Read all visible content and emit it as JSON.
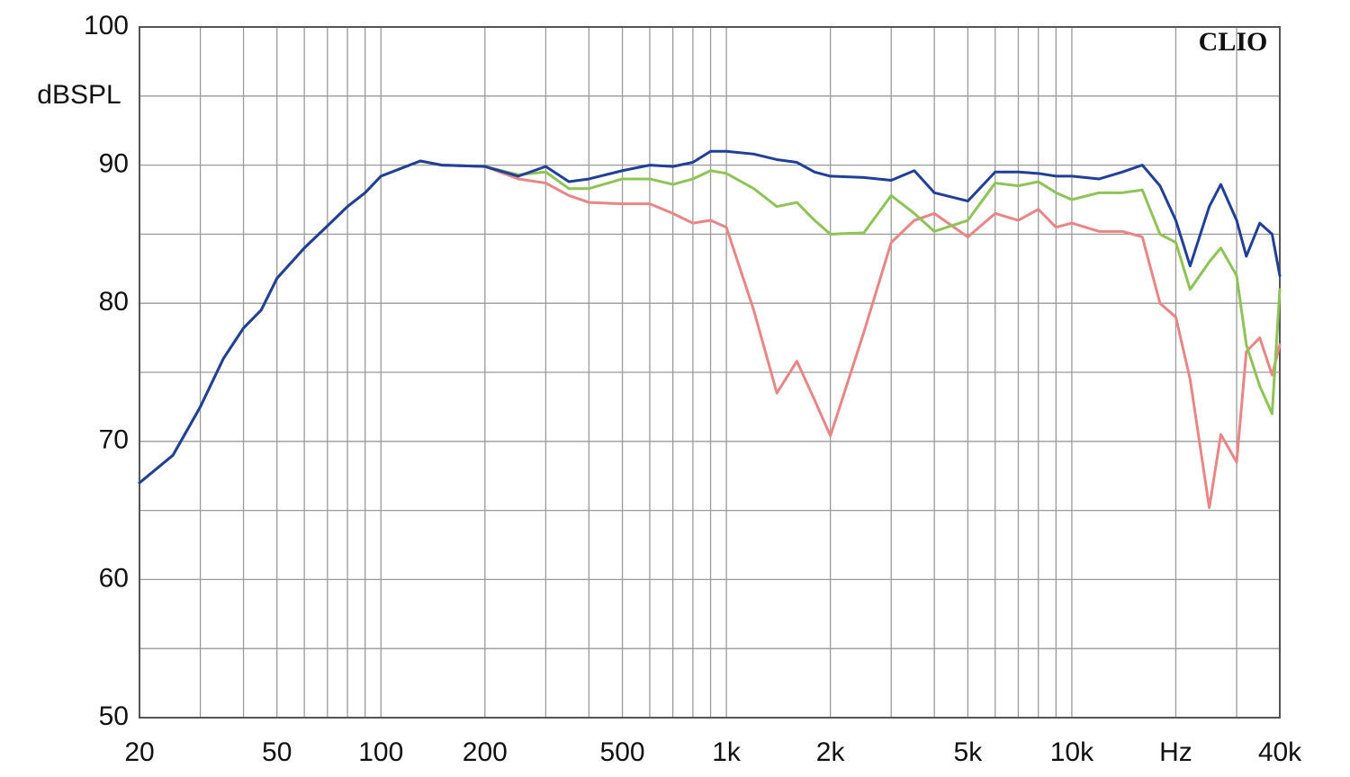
{
  "chart_data": {
    "type": "line",
    "ylabel": "dBSPL",
    "annotation": "CLIO",
    "xscale": "log",
    "grid": true,
    "xlim": [
      20,
      40000
    ],
    "ylim": [
      50,
      100
    ],
    "xticks": [
      20,
      50,
      100,
      200,
      500,
      {
        "value": 1000,
        "label": "1k"
      },
      {
        "value": 2000,
        "label": "2k"
      },
      {
        "value": 5000,
        "label": "5k"
      },
      {
        "value": 10000,
        "label": "10k"
      },
      {
        "value": 20000,
        "label": "Hz"
      },
      {
        "value": 40000,
        "label": "40k"
      }
    ],
    "xminorgrid": [
      30,
      40,
      60,
      70,
      80,
      90,
      300,
      400,
      600,
      700,
      800,
      900,
      3000,
      4000,
      6000,
      7000,
      8000,
      9000,
      30000
    ],
    "yticks": [
      50,
      60,
      70,
      80,
      90,
      100
    ],
    "yminorgrid": [
      55,
      65,
      75,
      85,
      95
    ],
    "x": [
      20,
      25,
      30,
      35,
      40,
      45,
      50,
      60,
      70,
      80,
      90,
      100,
      130,
      150,
      200,
      250,
      300,
      350,
      400,
      500,
      600,
      700,
      800,
      900,
      1000,
      1200,
      1400,
      1600,
      1800,
      2000,
      2500,
      3000,
      3500,
      4000,
      5000,
      6000,
      7000,
      8000,
      9000,
      10000,
      12000,
      14000,
      16000,
      18000,
      20000,
      22000,
      25000,
      27000,
      30000,
      32000,
      35000,
      38000,
      40000
    ],
    "series": [
      {
        "color": "#ea8585",
        "values": [
          67,
          69,
          72.5,
          76,
          78.2,
          79.5,
          81.8,
          84,
          85.6,
          87,
          88,
          89.2,
          90.3,
          90,
          89.9,
          89,
          88.7,
          87.8,
          87.3,
          87.2,
          87.2,
          86.5,
          85.8,
          86,
          85.5,
          79.5,
          73.5,
          75.8,
          73,
          70.4,
          77.9,
          84.4,
          86,
          86.5,
          84.8,
          86.5,
          86,
          86.8,
          85.5,
          85.8,
          85.2,
          85.2,
          84.8,
          80,
          79,
          74.5,
          65.2,
          70.5,
          68.5,
          76.5,
          77.5,
          74.8,
          77
        ]
      },
      {
        "color": "#8dc455",
        "values": [
          67,
          69,
          72.5,
          76,
          78.2,
          79.5,
          81.8,
          84,
          85.6,
          87,
          88,
          89.2,
          90.3,
          90,
          89.9,
          89.3,
          89.5,
          88.3,
          88.3,
          89,
          89,
          88.6,
          89,
          89.6,
          89.4,
          88.3,
          87,
          87.3,
          86,
          85,
          85.1,
          87.8,
          86.5,
          85.2,
          86,
          88.7,
          88.5,
          88.8,
          88,
          87.5,
          88,
          88,
          88.2,
          85,
          84.4,
          81,
          83,
          84,
          82,
          77,
          74,
          72,
          81
        ]
      },
      {
        "color": "#1f3f98",
        "values": [
          67,
          69,
          72.5,
          76,
          78.2,
          79.5,
          81.8,
          84,
          85.6,
          87,
          88,
          89.2,
          90.3,
          90,
          89.9,
          89.2,
          89.9,
          88.8,
          89,
          89.6,
          90,
          89.9,
          90.2,
          91,
          91,
          90.8,
          90.4,
          90.2,
          89.5,
          89.2,
          89.1,
          88.9,
          89.6,
          88,
          87.4,
          89.5,
          89.5,
          89.4,
          89.2,
          89.2,
          89,
          89.5,
          90,
          88.5,
          86,
          82.7,
          87,
          88.6,
          86,
          83.4,
          85.8,
          85,
          82
        ]
      }
    ]
  }
}
